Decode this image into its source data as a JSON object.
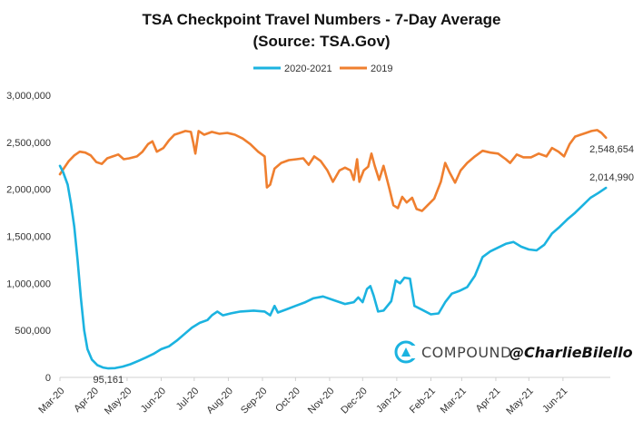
{
  "chart_data": {
    "type": "line",
    "title": "TSA Checkpoint Travel Numbers - 7-Day Average",
    "subtitle": "(Source: TSA.Gov)",
    "ylim": [
      0,
      3000000
    ],
    "yticks": [
      0,
      500000,
      1000000,
      1500000,
      2000000,
      2500000,
      3000000
    ],
    "ytick_labels": [
      "0",
      "500,000",
      "1,000,000",
      "1,500,000",
      "2,000,000",
      "2,500,000",
      "3,000,000"
    ],
    "xlim": [
      "2020-03-01",
      "2021-07-14"
    ],
    "x_ticks": [
      {
        "date": "2020-03-01",
        "label": "Mar-20"
      },
      {
        "date": "2020-04-01",
        "label": "Apr-20"
      },
      {
        "date": "2020-05-01",
        "label": "May-20"
      },
      {
        "date": "2020-06-01",
        "label": "Jun-20"
      },
      {
        "date": "2020-07-01",
        "label": "Jul-20"
      },
      {
        "date": "2020-08-01",
        "label": "Aug-20"
      },
      {
        "date": "2020-09-01",
        "label": "Sep-20"
      },
      {
        "date": "2020-10-01",
        "label": "Oct-20"
      },
      {
        "date": "2020-11-01",
        "label": "Nov-20"
      },
      {
        "date": "2020-12-01",
        "label": "Dec-20"
      },
      {
        "date": "2021-01-01",
        "label": "Jan-21"
      },
      {
        "date": "2021-02-01",
        "label": "Feb-21"
      },
      {
        "date": "2021-03-01",
        "label": "Mar-21"
      },
      {
        "date": "2021-04-01",
        "label": "Apr-21"
      },
      {
        "date": "2021-05-01",
        "label": "May-21"
      },
      {
        "date": "2021-06-01",
        "label": "Jun-21"
      }
    ],
    "grid": false,
    "legend_position": "top-center",
    "series": [
      {
        "name": "2020-2021",
        "color": "#1bb3e0",
        "points": [
          [
            "2020-03-01",
            2250000
          ],
          [
            "2020-03-04",
            2180000
          ],
          [
            "2020-03-08",
            2050000
          ],
          [
            "2020-03-11",
            1850000
          ],
          [
            "2020-03-14",
            1600000
          ],
          [
            "2020-03-17",
            1250000
          ],
          [
            "2020-03-20",
            850000
          ],
          [
            "2020-03-23",
            500000
          ],
          [
            "2020-03-26",
            300000
          ],
          [
            "2020-03-30",
            190000
          ],
          [
            "2020-04-04",
            130000
          ],
          [
            "2020-04-09",
            105000
          ],
          [
            "2020-04-14",
            95161
          ],
          [
            "2020-04-20",
            98000
          ],
          [
            "2020-04-27",
            115000
          ],
          [
            "2020-05-04",
            140000
          ],
          [
            "2020-05-11",
            175000
          ],
          [
            "2020-05-18",
            210000
          ],
          [
            "2020-05-25",
            250000
          ],
          [
            "2020-06-01",
            300000
          ],
          [
            "2020-06-08",
            330000
          ],
          [
            "2020-06-15",
            390000
          ],
          [
            "2020-06-22",
            460000
          ],
          [
            "2020-06-29",
            530000
          ],
          [
            "2020-07-06",
            580000
          ],
          [
            "2020-07-13",
            610000
          ],
          [
            "2020-07-17",
            660000
          ],
          [
            "2020-07-22",
            700000
          ],
          [
            "2020-07-27",
            660000
          ],
          [
            "2020-08-03",
            680000
          ],
          [
            "2020-08-12",
            700000
          ],
          [
            "2020-08-24",
            710000
          ],
          [
            "2020-09-03",
            700000
          ],
          [
            "2020-09-08",
            660000
          ],
          [
            "2020-09-12",
            760000
          ],
          [
            "2020-09-15",
            690000
          ],
          [
            "2020-09-22",
            720000
          ],
          [
            "2020-10-01",
            760000
          ],
          [
            "2020-10-10",
            800000
          ],
          [
            "2020-10-17",
            840000
          ],
          [
            "2020-10-26",
            860000
          ],
          [
            "2020-11-05",
            820000
          ],
          [
            "2020-11-15",
            780000
          ],
          [
            "2020-11-23",
            800000
          ],
          [
            "2020-11-27",
            850000
          ],
          [
            "2020-12-01",
            800000
          ],
          [
            "2020-12-05",
            940000
          ],
          [
            "2020-12-08",
            970000
          ],
          [
            "2020-12-11",
            870000
          ],
          [
            "2020-12-15",
            700000
          ],
          [
            "2020-12-20",
            710000
          ],
          [
            "2020-12-27",
            810000
          ],
          [
            "2020-12-31",
            1030000
          ],
          [
            "2021-01-04",
            1000000
          ],
          [
            "2021-01-08",
            1060000
          ],
          [
            "2021-01-13",
            1050000
          ],
          [
            "2021-01-17",
            760000
          ],
          [
            "2021-01-24",
            720000
          ],
          [
            "2021-02-01",
            670000
          ],
          [
            "2021-02-08",
            680000
          ],
          [
            "2021-02-14",
            800000
          ],
          [
            "2021-02-20",
            890000
          ],
          [
            "2021-02-27",
            920000
          ],
          [
            "2021-03-06",
            960000
          ],
          [
            "2021-03-13",
            1080000
          ],
          [
            "2021-03-20",
            1280000
          ],
          [
            "2021-03-27",
            1340000
          ],
          [
            "2021-04-03",
            1380000
          ],
          [
            "2021-04-10",
            1420000
          ],
          [
            "2021-04-17",
            1440000
          ],
          [
            "2021-04-24",
            1390000
          ],
          [
            "2021-05-01",
            1360000
          ],
          [
            "2021-05-08",
            1350000
          ],
          [
            "2021-05-15",
            1410000
          ],
          [
            "2021-05-22",
            1530000
          ],
          [
            "2021-05-29",
            1600000
          ],
          [
            "2021-06-05",
            1680000
          ],
          [
            "2021-06-12",
            1750000
          ],
          [
            "2021-06-19",
            1830000
          ],
          [
            "2021-06-26",
            1910000
          ],
          [
            "2021-07-03",
            1960000
          ],
          [
            "2021-07-10",
            2014990
          ]
        ]
      },
      {
        "name": "2019",
        "color": "#ef7f2f",
        "points": [
          [
            "2020-03-01",
            2160000
          ],
          [
            "2020-03-05",
            2230000
          ],
          [
            "2020-03-09",
            2300000
          ],
          [
            "2020-03-14",
            2360000
          ],
          [
            "2020-03-19",
            2400000
          ],
          [
            "2020-03-24",
            2390000
          ],
          [
            "2020-03-29",
            2360000
          ],
          [
            "2020-04-03",
            2290000
          ],
          [
            "2020-04-08",
            2270000
          ],
          [
            "2020-04-13",
            2330000
          ],
          [
            "2020-04-18",
            2350000
          ],
          [
            "2020-04-23",
            2370000
          ],
          [
            "2020-04-28",
            2320000
          ],
          [
            "2020-05-03",
            2330000
          ],
          [
            "2020-05-10",
            2350000
          ],
          [
            "2020-05-15",
            2400000
          ],
          [
            "2020-05-20",
            2480000
          ],
          [
            "2020-05-24",
            2510000
          ],
          [
            "2020-05-28",
            2400000
          ],
          [
            "2020-06-03",
            2440000
          ],
          [
            "2020-06-08",
            2520000
          ],
          [
            "2020-06-13",
            2580000
          ],
          [
            "2020-06-18",
            2600000
          ],
          [
            "2020-06-23",
            2620000
          ],
          [
            "2020-06-28",
            2610000
          ],
          [
            "2020-06-30",
            2500000
          ],
          [
            "2020-07-02",
            2380000
          ],
          [
            "2020-07-05",
            2620000
          ],
          [
            "2020-07-10",
            2580000
          ],
          [
            "2020-07-17",
            2610000
          ],
          [
            "2020-07-24",
            2590000
          ],
          [
            "2020-07-31",
            2600000
          ],
          [
            "2020-08-07",
            2580000
          ],
          [
            "2020-08-14",
            2540000
          ],
          [
            "2020-08-21",
            2480000
          ],
          [
            "2020-08-28",
            2400000
          ],
          [
            "2020-09-03",
            2350000
          ],
          [
            "2020-09-05",
            2020000
          ],
          [
            "2020-09-08",
            2050000
          ],
          [
            "2020-09-12",
            2220000
          ],
          [
            "2020-09-18",
            2280000
          ],
          [
            "2020-09-25",
            2310000
          ],
          [
            "2020-10-02",
            2320000
          ],
          [
            "2020-10-08",
            2330000
          ],
          [
            "2020-10-13",
            2260000
          ],
          [
            "2020-10-18",
            2350000
          ],
          [
            "2020-10-24",
            2300000
          ],
          [
            "2020-10-30",
            2200000
          ],
          [
            "2020-11-04",
            2080000
          ],
          [
            "2020-11-10",
            2200000
          ],
          [
            "2020-11-15",
            2230000
          ],
          [
            "2020-11-20",
            2200000
          ],
          [
            "2020-11-23",
            2100000
          ],
          [
            "2020-11-26",
            2320000
          ],
          [
            "2020-11-28",
            2080000
          ],
          [
            "2020-12-02",
            2200000
          ],
          [
            "2020-12-06",
            2240000
          ],
          [
            "2020-12-09",
            2380000
          ],
          [
            "2020-12-12",
            2250000
          ],
          [
            "2020-12-16",
            2100000
          ],
          [
            "2020-12-20",
            2250000
          ],
          [
            "2020-12-25",
            2020000
          ],
          [
            "2020-12-29",
            1830000
          ],
          [
            "2021-01-02",
            1800000
          ],
          [
            "2021-01-06",
            1920000
          ],
          [
            "2021-01-10",
            1860000
          ],
          [
            "2021-01-15",
            1910000
          ],
          [
            "2021-01-19",
            1790000
          ],
          [
            "2021-01-24",
            1770000
          ],
          [
            "2021-01-29",
            1830000
          ],
          [
            "2021-02-04",
            1900000
          ],
          [
            "2021-02-10",
            2080000
          ],
          [
            "2021-02-14",
            2280000
          ],
          [
            "2021-02-18",
            2180000
          ],
          [
            "2021-02-23",
            2070000
          ],
          [
            "2021-02-28",
            2200000
          ],
          [
            "2021-03-06",
            2280000
          ],
          [
            "2021-03-13",
            2350000
          ],
          [
            "2021-03-20",
            2410000
          ],
          [
            "2021-03-27",
            2390000
          ],
          [
            "2021-04-03",
            2380000
          ],
          [
            "2021-04-10",
            2320000
          ],
          [
            "2021-04-14",
            2280000
          ],
          [
            "2021-04-20",
            2370000
          ],
          [
            "2021-04-26",
            2340000
          ],
          [
            "2021-05-03",
            2340000
          ],
          [
            "2021-05-10",
            2380000
          ],
          [
            "2021-05-17",
            2350000
          ],
          [
            "2021-05-22",
            2440000
          ],
          [
            "2021-05-28",
            2400000
          ],
          [
            "2021-06-02",
            2350000
          ],
          [
            "2021-06-07",
            2480000
          ],
          [
            "2021-06-12",
            2560000
          ],
          [
            "2021-06-17",
            2580000
          ],
          [
            "2021-06-22",
            2600000
          ],
          [
            "2021-06-27",
            2620000
          ],
          [
            "2021-07-02",
            2630000
          ],
          [
            "2021-07-06",
            2600000
          ],
          [
            "2021-07-10",
            2548654
          ]
        ]
      }
    ],
    "annotations": [
      {
        "text": "95,161",
        "series": "2020-2021",
        "date": "2020-04-14",
        "value": 95161,
        "position": "below"
      },
      {
        "text": "2,014,990",
        "series": "2020-2021",
        "date": "2021-07-10",
        "value": 2014990,
        "position": "above"
      },
      {
        "text": "2,548,654",
        "series": "2019",
        "date": "2021-07-10",
        "value": 2548654,
        "position": "below"
      }
    ]
  },
  "branding": {
    "logo_icon": "compound-logo-icon",
    "brand_name": "COMPOUND",
    "handle": "@CharlieBilello",
    "color": "#1bb3e0"
  }
}
